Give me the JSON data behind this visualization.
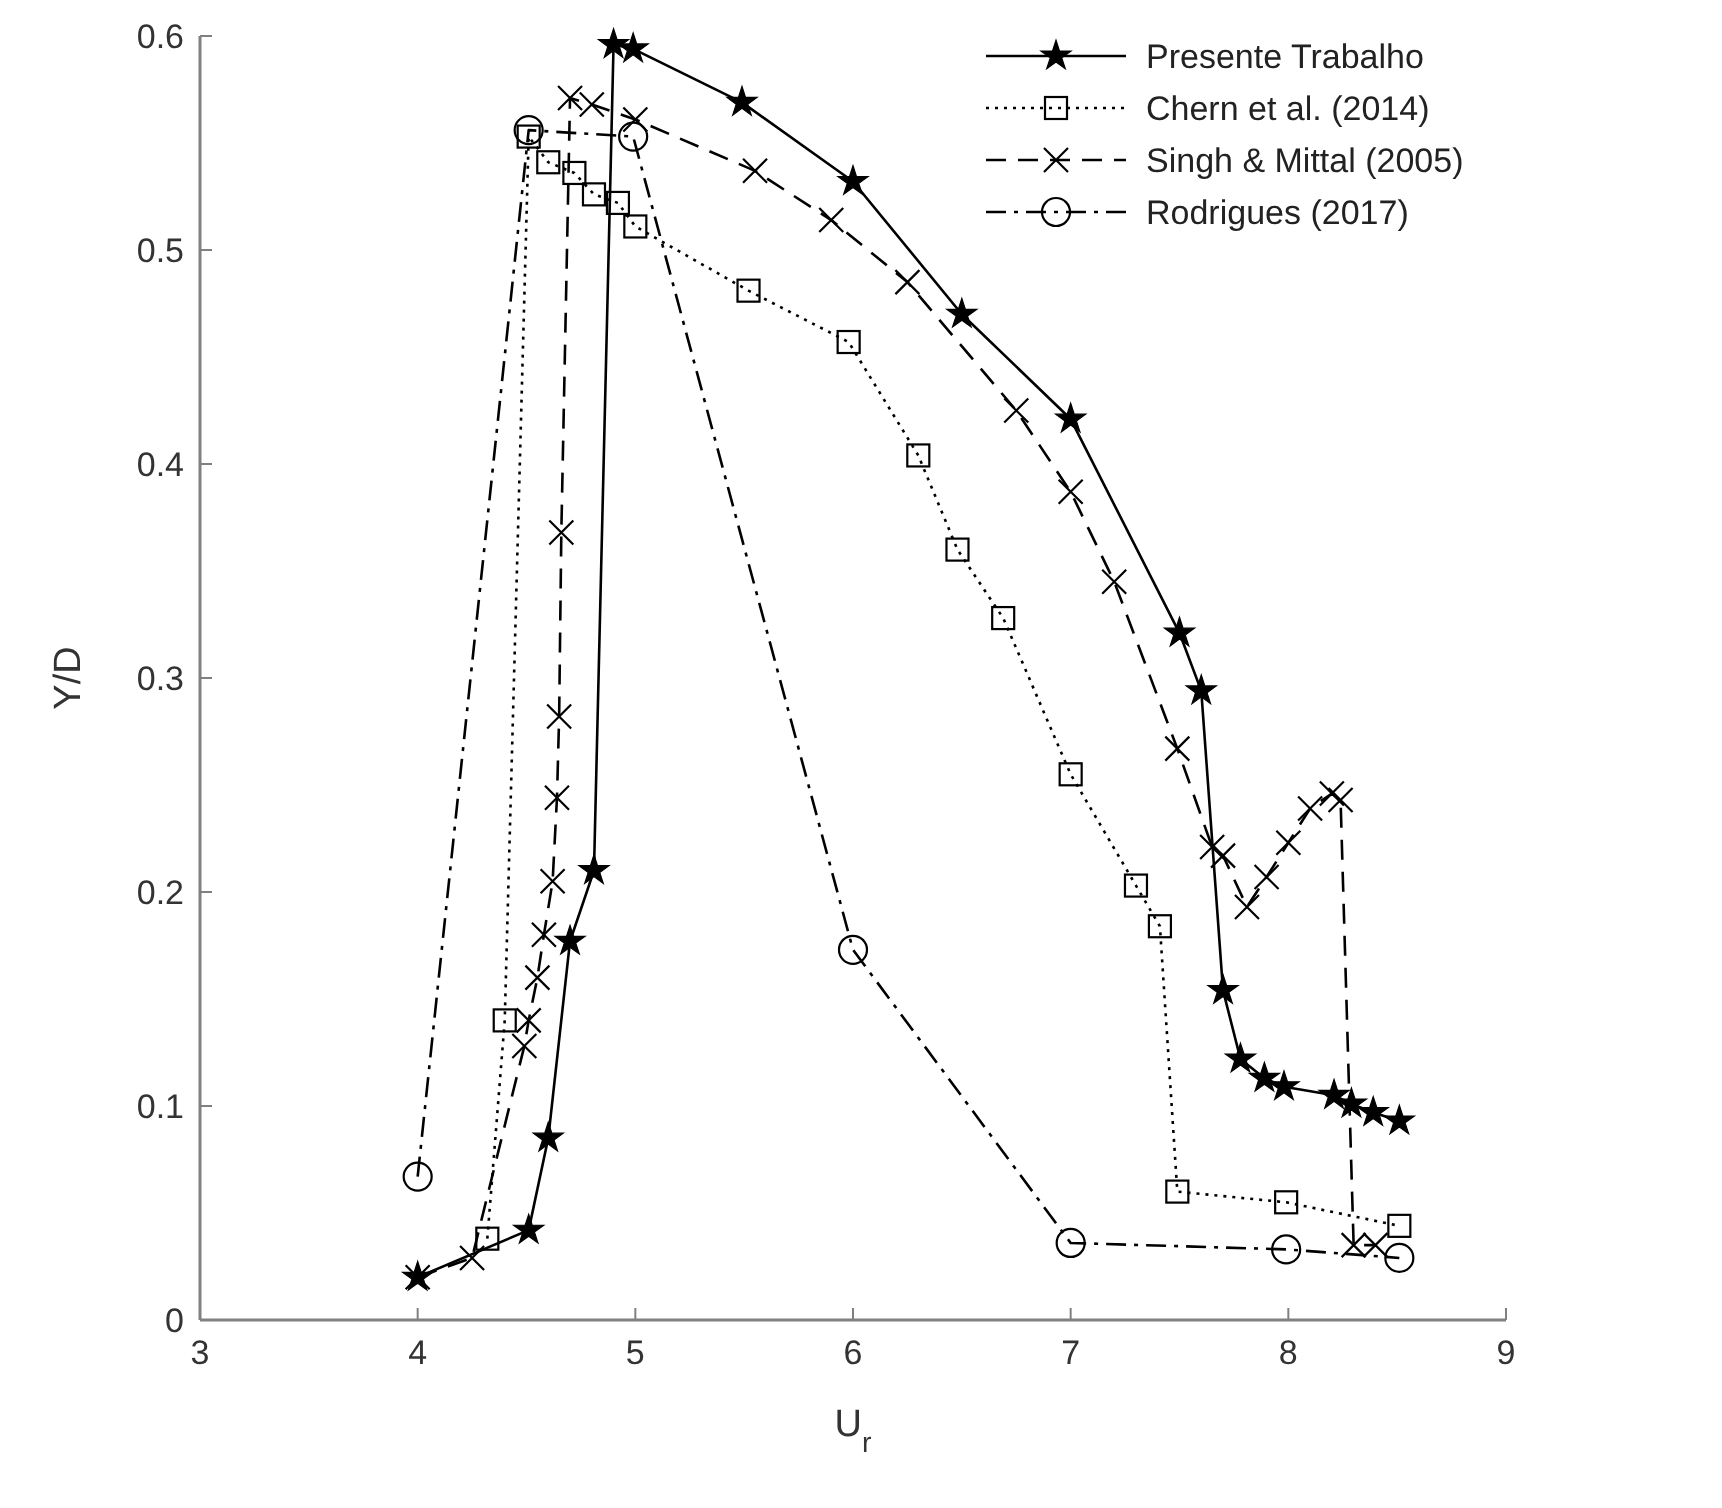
{
  "chart_data": {
    "type": "line",
    "xlabel": "U$_{r}$",
    "ylabel": "Y/D",
    "xlim": [
      3,
      9
    ],
    "ylim": [
      0,
      0.6
    ],
    "xticks": [
      3,
      4,
      5,
      6,
      7,
      8,
      9
    ],
    "yticks": [
      0,
      0.1,
      0.2,
      0.3,
      0.4,
      0.5,
      0.6
    ],
    "grid": false,
    "legend": "top right",
    "series": [
      {
        "name": "Presente Trabalho",
        "color": "#000000",
        "marker": "star",
        "line_style": "solid",
        "x": [
          4,
          4.51,
          4.6,
          4.7,
          4.81,
          4.9,
          4.99,
          5.49,
          6,
          6.5,
          7,
          7.5,
          7.6,
          7.7,
          7.78,
          7.89,
          7.98,
          8.21,
          8.29,
          8.39,
          8.51
        ],
        "values": [
          0.02,
          0.042,
          0.085,
          0.177,
          0.21,
          0.596,
          0.594,
          0.569,
          0.532,
          0.47,
          0.421,
          0.321,
          0.294,
          0.154,
          0.122,
          0.113,
          0.109,
          0.105,
          0.101,
          0.097,
          0.093
        ]
      },
      {
        "name": "Chern et al. (2014)",
        "color": "#000000",
        "marker": "square",
        "line_style": "dotted",
        "x": [
          4.32,
          4.4,
          4.51,
          4.6,
          4.72,
          4.81,
          4.92,
          5,
          5.52,
          5.98,
          6.3,
          6.48,
          6.69,
          7,
          7.3,
          7.41,
          7.49,
          7.99,
          8.51
        ],
        "values": [
          0.038,
          0.14,
          0.553,
          0.541,
          0.536,
          0.526,
          0.522,
          0.511,
          0.481,
          0.457,
          0.404,
          0.36,
          0.328,
          0.255,
          0.203,
          0.184,
          0.06,
          0.055,
          0.044
        ]
      },
      {
        "name": "Singh & Mittal (2005)",
        "color": "#000000",
        "marker": "cross",
        "line_style": "dashed",
        "x": [
          4,
          4.25,
          4.49,
          4.51,
          4.55,
          4.58,
          4.62,
          4.64,
          4.65,
          4.66,
          4.7,
          4.8,
          5,
          5.55,
          5.9,
          6.25,
          6.75,
          7,
          7.2,
          7.49,
          7.65,
          7.7,
          7.81,
          7.9,
          8,
          8.1,
          8.2,
          8.24,
          8.3,
          8.4
        ],
        "values": [
          0.02,
          0.029,
          0.128,
          0.14,
          0.16,
          0.18,
          0.205,
          0.244,
          0.282,
          0.368,
          0.571,
          0.568,
          0.561,
          0.537,
          0.514,
          0.485,
          0.425,
          0.387,
          0.345,
          0.267,
          0.221,
          0.217,
          0.193,
          0.207,
          0.223,
          0.239,
          0.246,
          0.243,
          0.035,
          0.035
        ]
      },
      {
        "name": "Rodrigues (2017)",
        "color": "#000000",
        "marker": "circle",
        "line_style": "dashdot",
        "x": [
          4,
          4.51,
          4.99,
          6,
          7,
          7.99,
          8.51
        ],
        "values": [
          0.067,
          0.556,
          0.553,
          0.173,
          0.036,
          0.033,
          0.029
        ]
      }
    ]
  }
}
